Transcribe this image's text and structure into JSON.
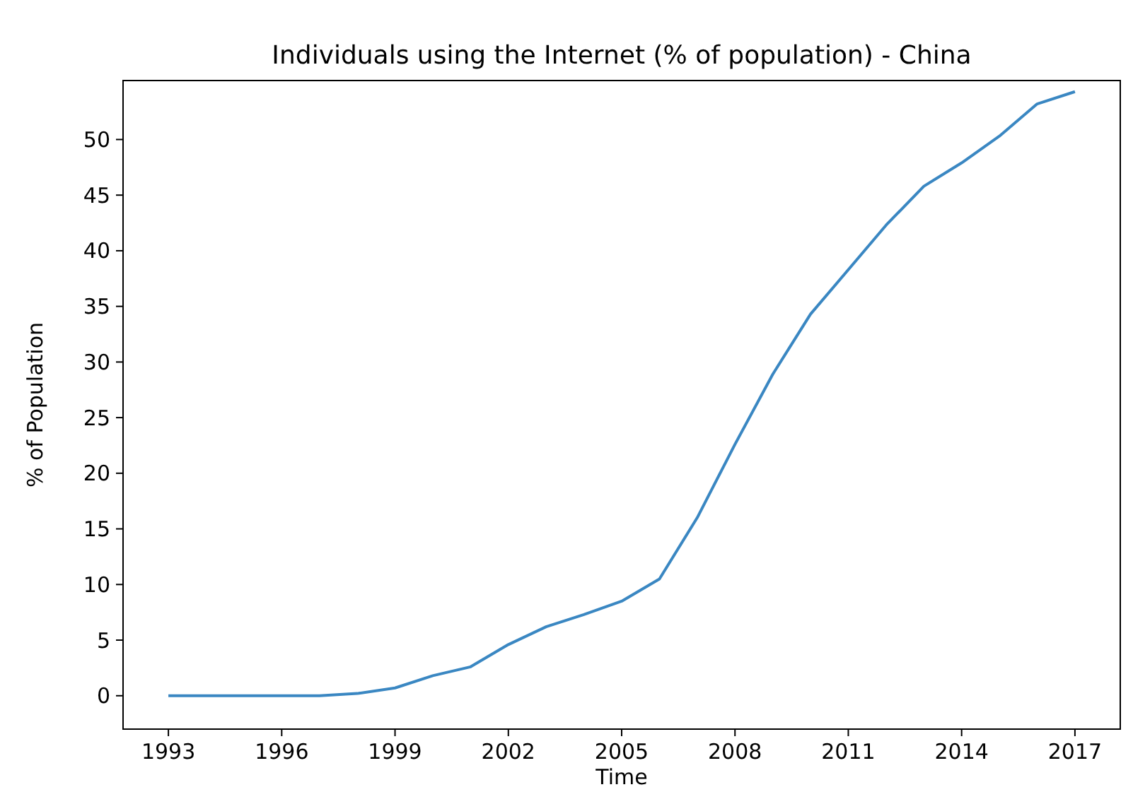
{
  "chart_data": {
    "type": "line",
    "title": "Individuals using the Internet (% of population) - China",
    "xlabel": "Time",
    "ylabel": "% of Population",
    "x": [
      1993,
      1994,
      1995,
      1996,
      1997,
      1998,
      1999,
      2000,
      2001,
      2002,
      2003,
      2004,
      2005,
      2006,
      2007,
      2008,
      2009,
      2010,
      2011,
      2012,
      2013,
      2014,
      2015,
      2016,
      2017
    ],
    "series": [
      {
        "color": "#3a87c2",
        "values": [
          0,
          0,
          0,
          0,
          0,
          0.2,
          0.7,
          1.8,
          2.6,
          4.6,
          6.2,
          7.3,
          8.5,
          10.5,
          16,
          22.6,
          28.9,
          34.3,
          38.3,
          42.3,
          45.8,
          47.9,
          50.3,
          53.2,
          54.3
        ]
      }
    ],
    "xlim": [
      1991.8,
      2018.2
    ],
    "xticks": [
      1993,
      1996,
      1999,
      2002,
      2005,
      2008,
      2011,
      2014,
      2017
    ],
    "ylim": [
      -3,
      55.3
    ],
    "yticks": [
      0,
      5,
      10,
      15,
      20,
      25,
      30,
      35,
      40,
      45,
      50
    ],
    "grid": false
  }
}
